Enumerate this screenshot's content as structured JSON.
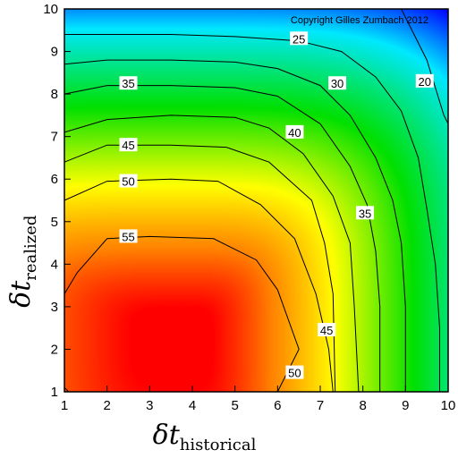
{
  "chart_data": {
    "type": "heatmap",
    "title": "",
    "copyright": "Copyright Gilles Zumbach 2012",
    "xlabel": {
      "symbol": "δt",
      "subscript": "historical"
    },
    "ylabel": {
      "symbol": "δt",
      "subscript": "realized"
    },
    "xlim": [
      1,
      10
    ],
    "ylim": [
      1,
      10
    ],
    "x_ticks": [
      "1",
      "2",
      "3",
      "4",
      "5",
      "6",
      "7",
      "8",
      "9",
      "10"
    ],
    "y_ticks": [
      "1",
      "2",
      "3",
      "4",
      "5",
      "6",
      "7",
      "8",
      "9",
      "10"
    ],
    "colormap": {
      "stops": [
        {
          "value": 15,
          "color": "#0000ff"
        },
        {
          "value": 23,
          "color": "#00e8ff"
        },
        {
          "value": 35,
          "color": "#00e000"
        },
        {
          "value": 46,
          "color": "#ffff00"
        },
        {
          "value": 54,
          "color": "#ff8000"
        },
        {
          "value": 60,
          "color": "#ff0000"
        }
      ]
    },
    "contour_levels": [
      20,
      25,
      30,
      35,
      40,
      45,
      50,
      55
    ],
    "contour_labels": [
      {
        "text": "20",
        "x": 9.45,
        "y": 8.3
      },
      {
        "text": "25",
        "x": 6.5,
        "y": 9.3
      },
      {
        "text": "30",
        "x": 7.4,
        "y": 8.25
      },
      {
        "text": "35",
        "x": 2.5,
        "y": 8.25
      },
      {
        "text": "40",
        "x": 6.4,
        "y": 7.1
      },
      {
        "text": "45",
        "x": 2.5,
        "y": 6.8
      },
      {
        "text": "50",
        "x": 2.5,
        "y": 5.95
      },
      {
        "text": "55",
        "x": 2.5,
        "y": 4.65
      },
      {
        "text": "35",
        "x": 8.05,
        "y": 5.2
      },
      {
        "text": "45",
        "x": 7.15,
        "y": 2.45
      },
      {
        "text": "50",
        "x": 6.4,
        "y": 1.45
      }
    ],
    "contours": [
      {
        "level": 20,
        "points": [
          [
            8.9,
            10
          ],
          [
            9.5,
            8.8
          ],
          [
            9.9,
            7.5
          ],
          [
            10,
            7.3
          ]
        ]
      },
      {
        "level": 25,
        "points": [
          [
            1,
            9.4
          ],
          [
            2,
            9.4
          ],
          [
            3.5,
            9.4
          ],
          [
            5,
            9.35
          ],
          [
            6.5,
            9.25
          ],
          [
            7.5,
            9
          ],
          [
            8.3,
            8.4
          ],
          [
            8.9,
            7.6
          ],
          [
            9.3,
            6.5
          ],
          [
            9.5,
            5.3
          ],
          [
            9.7,
            4
          ],
          [
            9.8,
            2.5
          ],
          [
            9.8,
            1
          ]
        ]
      },
      {
        "level": 30,
        "points": [
          [
            1,
            8.7
          ],
          [
            2,
            8.8
          ],
          [
            3.5,
            8.8
          ],
          [
            5,
            8.75
          ],
          [
            6,
            8.6
          ],
          [
            7,
            8.2
          ],
          [
            7.7,
            7.5
          ],
          [
            8.3,
            6.5
          ],
          [
            8.7,
            5.5
          ],
          [
            8.9,
            4.5
          ],
          [
            9,
            3
          ],
          [
            9,
            1
          ]
        ]
      },
      {
        "level": 35,
        "points": [
          [
            1,
            8
          ],
          [
            2,
            8.2
          ],
          [
            3.5,
            8.2
          ],
          [
            5,
            8.15
          ],
          [
            6,
            7.95
          ],
          [
            7,
            7.3
          ],
          [
            7.7,
            6.3
          ],
          [
            8.1,
            5.4
          ],
          [
            8.3,
            4.3
          ],
          [
            8.4,
            3
          ],
          [
            8.4,
            1
          ]
        ]
      },
      {
        "level": 40,
        "points": [
          [
            1,
            7.1
          ],
          [
            2,
            7.4
          ],
          [
            3.5,
            7.5
          ],
          [
            5,
            7.45
          ],
          [
            5.8,
            7.2
          ],
          [
            6.6,
            6.6
          ],
          [
            7.3,
            5.6
          ],
          [
            7.7,
            4.5
          ],
          [
            7.8,
            3
          ],
          [
            7.9,
            1
          ]
        ]
      },
      {
        "level": 45,
        "points": [
          [
            1,
            6.4
          ],
          [
            2,
            6.8
          ],
          [
            3.5,
            6.8
          ],
          [
            4.8,
            6.75
          ],
          [
            5.8,
            6.4
          ],
          [
            6.8,
            5.5
          ],
          [
            7.1,
            4.5
          ],
          [
            7.3,
            3.3
          ],
          [
            7.35,
            1
          ]
        ]
      },
      {
        "level": 50,
        "points": [
          [
            1,
            5.5
          ],
          [
            2,
            5.95
          ],
          [
            3.5,
            6
          ],
          [
            4.6,
            5.95
          ],
          [
            5.6,
            5.4
          ],
          [
            6.4,
            4.6
          ],
          [
            6.9,
            3.3
          ],
          [
            7.2,
            2
          ],
          [
            7.3,
            1
          ]
        ]
      },
      {
        "level": 55,
        "points": [
          [
            1,
            3.3
          ],
          [
            1.3,
            3.8
          ],
          [
            2,
            4.6
          ],
          [
            3,
            4.65
          ],
          [
            4.5,
            4.6
          ],
          [
            5.5,
            4.1
          ],
          [
            6,
            3.4
          ],
          [
            6.5,
            2
          ],
          [
            6,
            1
          ]
        ]
      },
      {
        "level": 55,
        "points": [
          [
            1,
            1.1
          ],
          [
            1.1,
            1
          ]
        ]
      }
    ],
    "field": {
      "peak": {
        "x": 3.8,
        "y": 2.3,
        "value": 62
      },
      "corner_value": 15
    }
  }
}
